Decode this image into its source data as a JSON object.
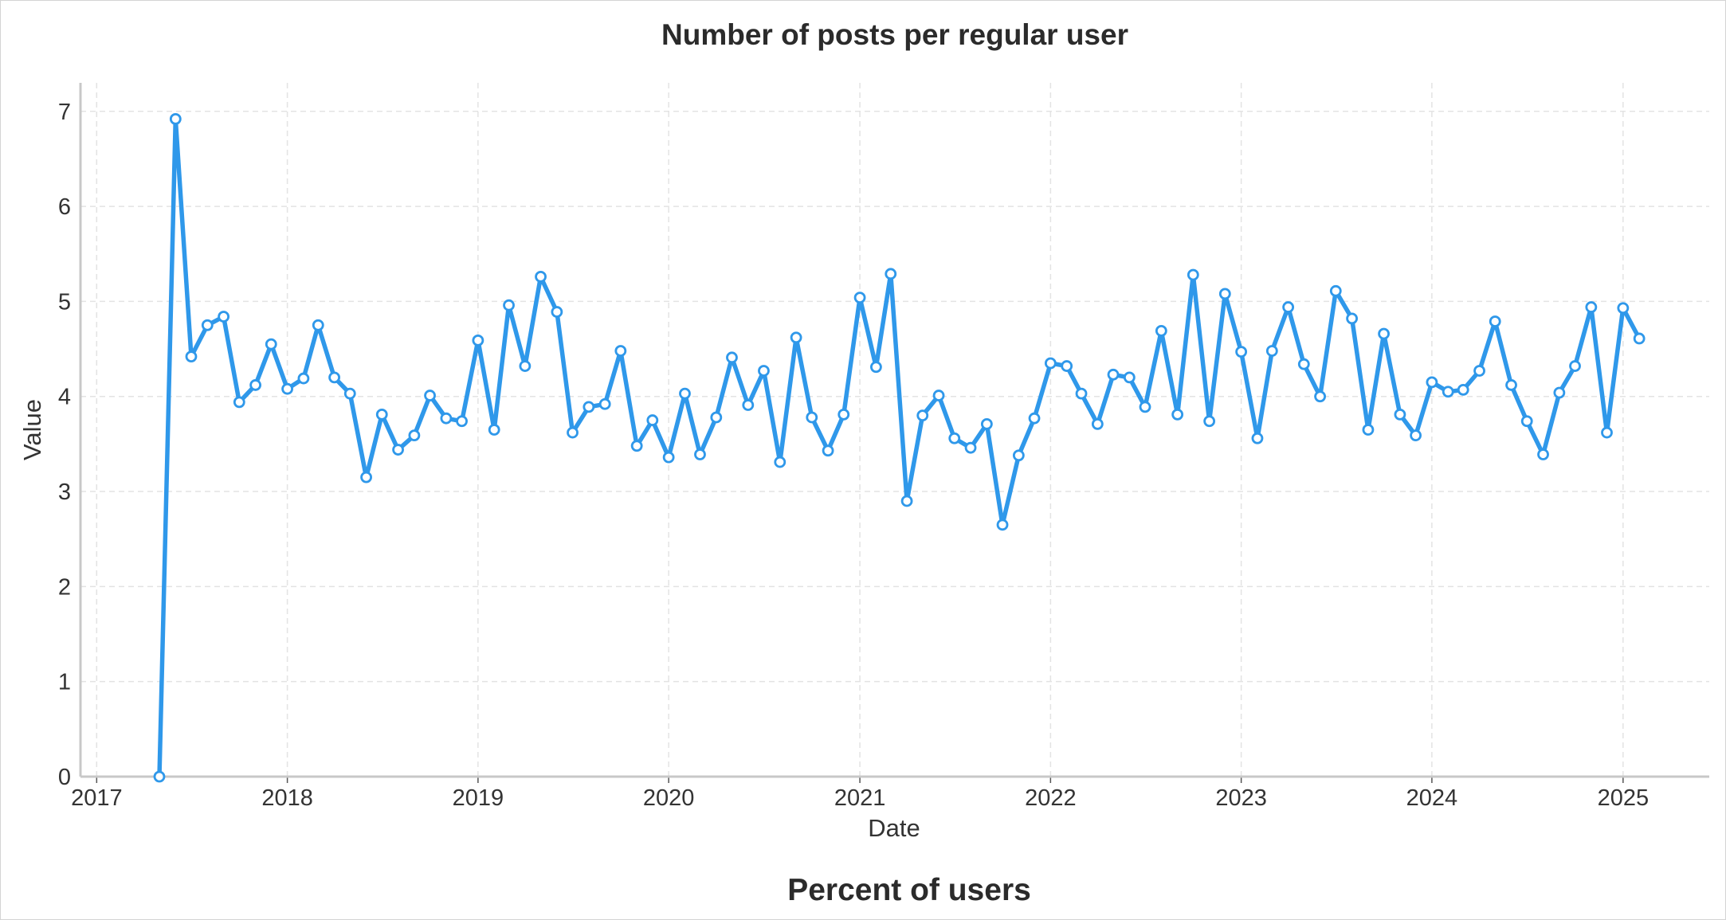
{
  "chart_data": {
    "type": "line",
    "title": "Number of posts per regular user",
    "xlabel": "Date",
    "ylabel": "Value",
    "footer_title": "Percent of users",
    "ylim": [
      0,
      7.3
    ],
    "xlim": [
      "2016-12-01",
      "2025-06-15"
    ],
    "x_ticks": [
      "2017",
      "2018",
      "2019",
      "2020",
      "2021",
      "2022",
      "2023",
      "2024",
      "2025"
    ],
    "y_ticks": [
      "0",
      "1",
      "2",
      "3",
      "4",
      "5",
      "6",
      "7"
    ],
    "grid": true,
    "line_color": "#2f98ea",
    "series": [
      {
        "x": [
          "2017-05",
          "2017-06",
          "2017-07",
          "2017-08",
          "2017-09",
          "2017-10",
          "2017-11",
          "2017-12",
          "2018-01",
          "2018-02",
          "2018-03",
          "2018-04",
          "2018-05",
          "2018-06",
          "2018-07",
          "2018-08",
          "2018-09",
          "2018-10",
          "2018-11",
          "2018-12",
          "2019-01",
          "2019-02",
          "2019-03",
          "2019-04",
          "2019-05",
          "2019-06",
          "2019-07",
          "2019-08",
          "2019-09",
          "2019-10",
          "2019-11",
          "2019-12",
          "2020-01",
          "2020-02",
          "2020-03",
          "2020-04",
          "2020-05",
          "2020-06",
          "2020-07",
          "2020-08",
          "2020-09",
          "2020-10",
          "2020-11",
          "2020-12",
          "2021-01",
          "2021-02",
          "2021-03",
          "2021-04",
          "2021-05",
          "2021-06",
          "2021-07",
          "2021-08",
          "2021-09",
          "2021-10",
          "2021-11",
          "2021-12",
          "2022-01",
          "2022-02",
          "2022-03",
          "2022-04",
          "2022-05",
          "2022-06",
          "2022-07",
          "2022-08",
          "2022-09",
          "2022-10",
          "2022-11",
          "2022-12",
          "2023-01",
          "2023-02",
          "2023-03",
          "2023-04",
          "2023-05",
          "2023-06",
          "2023-07",
          "2023-08",
          "2023-09",
          "2023-10",
          "2023-11",
          "2023-12",
          "2024-01",
          "2024-02",
          "2024-03",
          "2024-04",
          "2024-05",
          "2024-06",
          "2024-07",
          "2024-08",
          "2024-09",
          "2024-10",
          "2024-11",
          "2024-12",
          "2025-01",
          "2025-02"
        ],
        "values": [
          0.0,
          6.92,
          4.42,
          4.75,
          4.84,
          3.94,
          4.12,
          4.55,
          4.08,
          4.19,
          4.75,
          4.2,
          4.03,
          3.15,
          3.81,
          3.44,
          3.59,
          4.01,
          3.77,
          3.74,
          4.59,
          3.65,
          4.96,
          4.32,
          5.26,
          4.89,
          3.62,
          3.89,
          3.92,
          4.48,
          3.48,
          3.75,
          3.36,
          4.03,
          3.39,
          3.78,
          4.41,
          3.91,
          4.27,
          3.31,
          4.62,
          3.78,
          3.43,
          3.81,
          5.04,
          4.31,
          5.29,
          2.9,
          3.8,
          4.01,
          3.56,
          3.46,
          3.71,
          2.65,
          3.38,
          3.77,
          4.35,
          4.32,
          4.03,
          3.71,
          4.23,
          4.2,
          3.89,
          4.69,
          3.81,
          5.28,
          3.74,
          5.08,
          4.47,
          3.56,
          4.48,
          4.94,
          4.34,
          4.0,
          5.11,
          4.82,
          3.65,
          4.66,
          3.81,
          3.59,
          4.15,
          4.05,
          4.07,
          4.27,
          4.79,
          4.12,
          3.74,
          3.39,
          4.04,
          4.32,
          4.94,
          3.62,
          4.93,
          4.61
        ]
      }
    ]
  }
}
